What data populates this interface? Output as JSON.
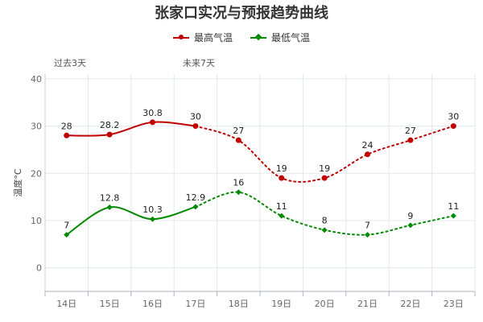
{
  "title": "张家口实况与预报趋势曲线",
  "legend": [
    {
      "name": "最高气温",
      "color": "#c00000"
    },
    {
      "name": "最低气温",
      "color": "#008a00"
    }
  ],
  "periods": {
    "past": "过去3天",
    "future": "未来7天"
  },
  "chart_data": {
    "type": "line",
    "title": "张家口实况与预报趋势曲线",
    "xlabel": "",
    "ylabel": "温度°C",
    "categories": [
      "14日",
      "15日",
      "16日",
      "17日",
      "18日",
      "19日",
      "20日",
      "21日",
      "22日",
      "23日"
    ],
    "ylim": [
      -5,
      41
    ],
    "yticks": [
      0,
      10,
      20,
      30,
      40
    ],
    "grid": true,
    "legend_position": "top-center",
    "observed_until_index": 3,
    "series": [
      {
        "name": "最高气温",
        "color": "#c00000",
        "marker": "circle",
        "values": [
          28,
          28.2,
          30.8,
          30,
          27,
          19,
          19,
          24,
          27,
          30
        ]
      },
      {
        "name": "最低气温",
        "color": "#008a00",
        "marker": "diamond",
        "values": [
          7,
          12.8,
          10.3,
          12.9,
          16,
          11,
          8,
          7,
          9,
          11
        ]
      }
    ]
  }
}
